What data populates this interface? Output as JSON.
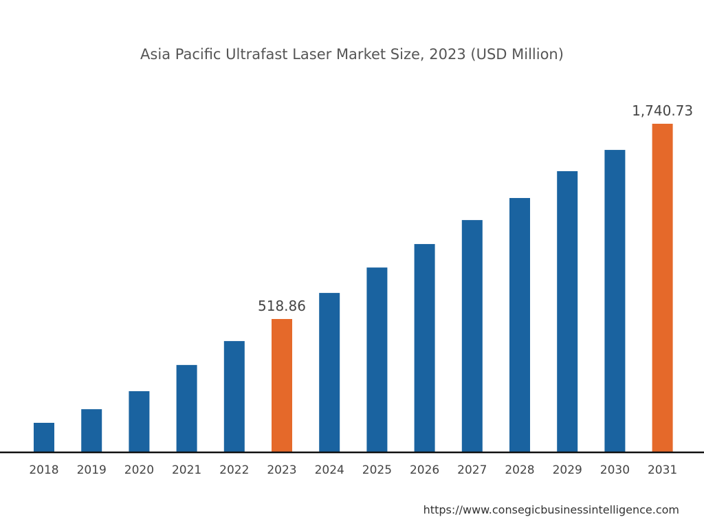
{
  "chart_data": {
    "type": "bar",
    "title": "Asia Pacific Ultrafast Laser Market Size, 2023 (USD Million)",
    "xlabel": "",
    "ylabel": "",
    "categories": [
      "2018",
      "2019",
      "2020",
      "2021",
      "2022",
      "2023",
      "2024",
      "2025",
      "2026",
      "2027",
      "2028",
      "2029",
      "2030",
      "2031"
    ],
    "values": [
      115,
      168,
      238,
      340,
      433,
      518.86,
      682,
      841,
      988,
      1138,
      1276,
      1444,
      1577,
      1740.73
    ],
    "data_labels": {
      "2023": "518.86",
      "2031": "1,740.73"
    },
    "highlight": [
      "2023",
      "2031"
    ],
    "grid": false,
    "colors": {
      "bar": "#1a63a0",
      "highlight": "#e5692a",
      "axis": "#111111"
    }
  },
  "source": "https://www.consegicbusinessintelligence.com"
}
